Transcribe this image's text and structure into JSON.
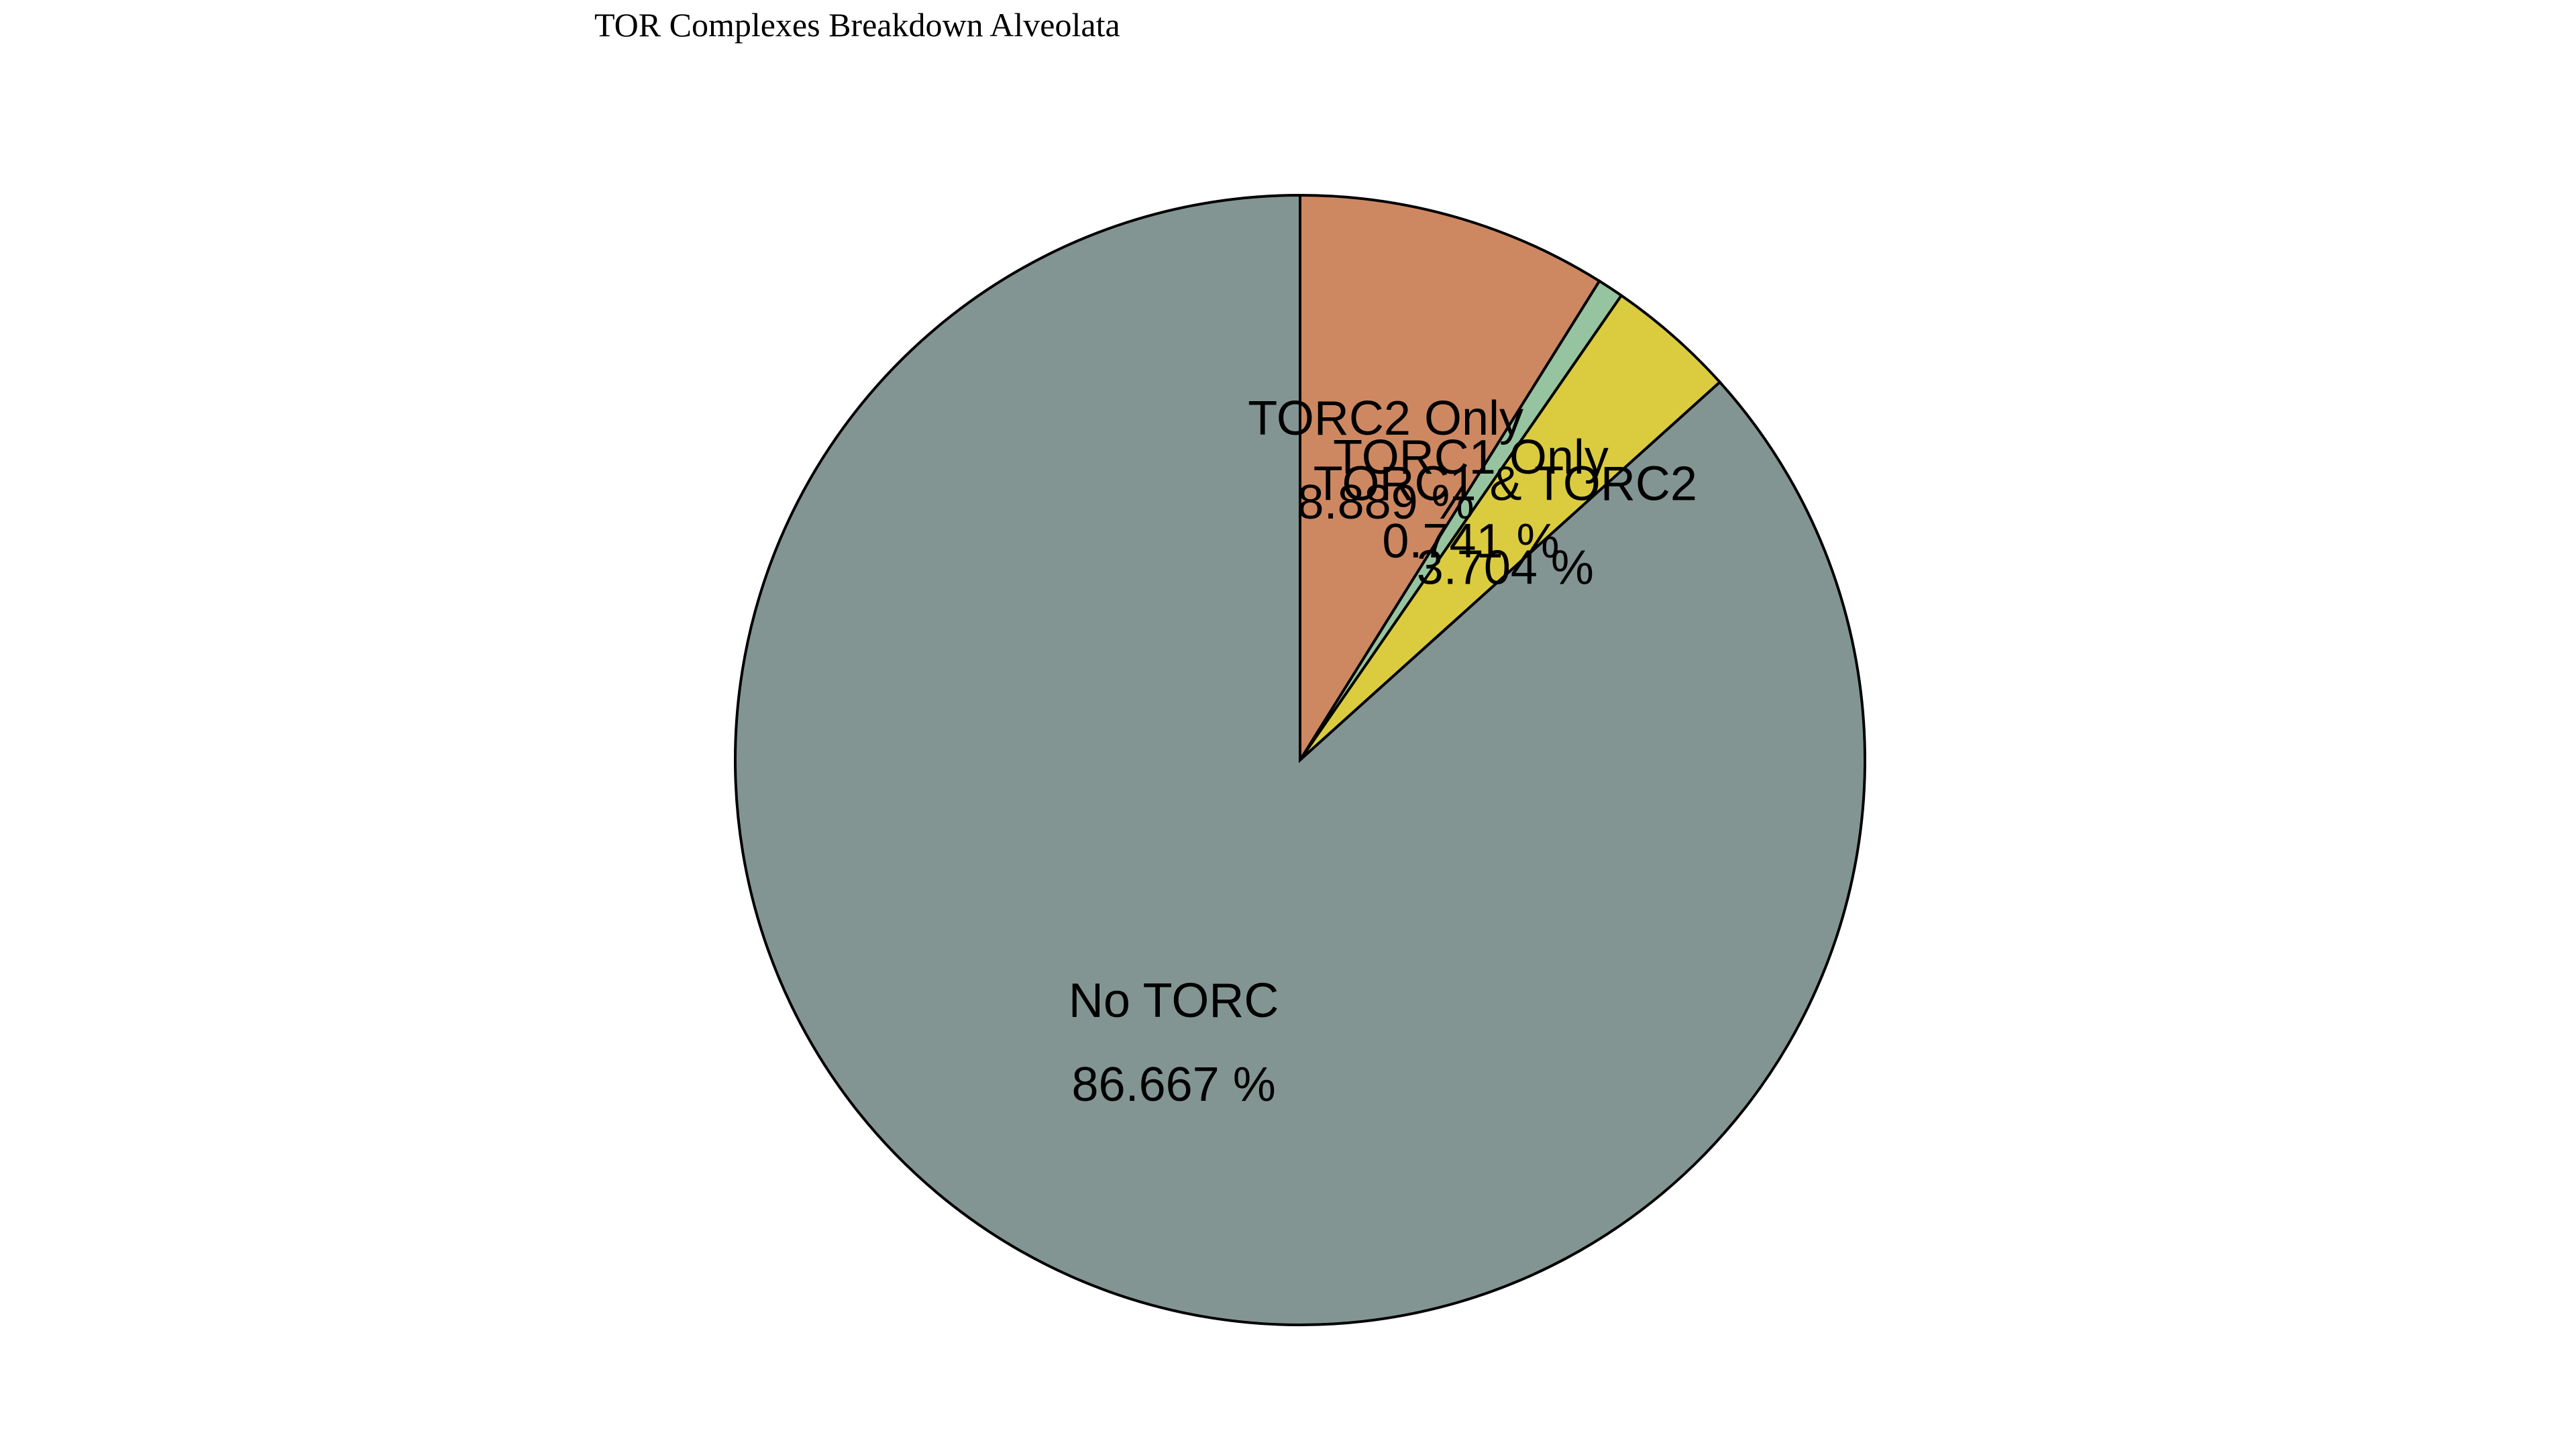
{
  "chart_data": {
    "type": "pie",
    "title": "TOR Complexes Breakdown Alveolata",
    "slices": [
      {
        "name": "TORC2 Only",
        "value": 8.889,
        "label": "8.889 %",
        "color": "#cd8862"
      },
      {
        "name": "TORC1 Only",
        "value": 0.741,
        "label": "0.741 %",
        "color": "#96c4a0"
      },
      {
        "name": "TORC1 & TORC2",
        "value": 3.704,
        "label": "3.704 %",
        "color": "#dbcc3f"
      },
      {
        "name": "No TORC",
        "value": 86.667,
        "label": "86.667 %",
        "color": "#829593"
      }
    ],
    "start_angle": 90,
    "direction": "clockwise",
    "legend": "none"
  }
}
